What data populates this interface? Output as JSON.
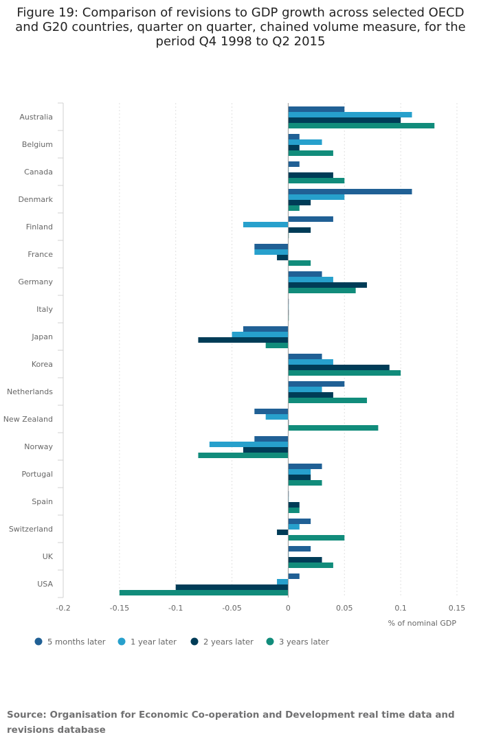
{
  "title": "Figure 19: Comparison of revisions to GDP growth across selected OECD and G20 countries, quarter on quarter, chained volume measure, for the period Q4 1998 to Q2 2015",
  "source": "Source: Organisation for Economic Co-operation and Development real time data and revisions database",
  "colors": {
    "five_months": "#206095",
    "one_year": "#27a0cc",
    "two_years": "#003c57",
    "three_years": "#118c7b",
    "grid": "#e0e0e0",
    "axis_text": "#666666"
  },
  "chart_data": {
    "type": "bar",
    "orientation": "horizontal",
    "title": "Figure 19: Comparison of revisions to GDP growth across selected OECD and G20 countries, quarter on quarter, chained volume measure, for the period Q4 1998 to Q2 2015",
    "xlabel": "% of nominal GDP",
    "ylabel": "",
    "xlim": [
      -0.2,
      0.15
    ],
    "xticks": [
      -0.2,
      -0.15,
      -0.1,
      -0.05,
      0,
      0.05,
      0.1,
      0.15
    ],
    "xtick_labels": [
      "-0.2",
      "-0.15",
      "-0.1",
      "-0.05",
      "0",
      "0.05",
      "0.1",
      "0.15"
    ],
    "grid": true,
    "legend_position": "bottom",
    "categories": [
      "Australia",
      "Belgium",
      "Canada",
      "Denmark",
      "Finland",
      "France",
      "Germany",
      "Italy",
      "Japan",
      "Korea",
      "Netherlands",
      "New Zealand",
      "Norway",
      "Portugal",
      "Spain",
      "Switzerland",
      "UK",
      "USA"
    ],
    "series": [
      {
        "name": "5 months later",
        "color": "#206095",
        "values": [
          0.05,
          0.01,
          0.01,
          0.11,
          0.04,
          -0.03,
          0.03,
          0.0,
          -0.04,
          0.03,
          0.05,
          -0.03,
          -0.03,
          0.03,
          0.0,
          0.02,
          0.02,
          0.01
        ]
      },
      {
        "name": "1 year later",
        "color": "#27a0cc",
        "values": [
          0.11,
          0.03,
          0.0,
          0.05,
          -0.04,
          -0.03,
          0.04,
          0.0,
          -0.05,
          0.04,
          0.03,
          -0.02,
          -0.07,
          0.02,
          0.0,
          0.01,
          0.0,
          -0.01
        ]
      },
      {
        "name": "2 years later",
        "color": "#003c57",
        "values": [
          0.1,
          0.01,
          0.04,
          0.02,
          0.02,
          -0.01,
          0.07,
          0.0,
          -0.08,
          0.09,
          0.04,
          0.0,
          -0.04,
          0.02,
          0.01,
          -0.01,
          0.03,
          -0.1
        ]
      },
      {
        "name": "3 years later",
        "color": "#118c7b",
        "values": [
          0.13,
          0.04,
          0.05,
          0.01,
          0.0,
          0.02,
          0.06,
          0.0,
          -0.02,
          0.1,
          0.07,
          0.08,
          -0.08,
          0.03,
          0.01,
          0.05,
          0.04,
          -0.15
        ]
      }
    ]
  }
}
